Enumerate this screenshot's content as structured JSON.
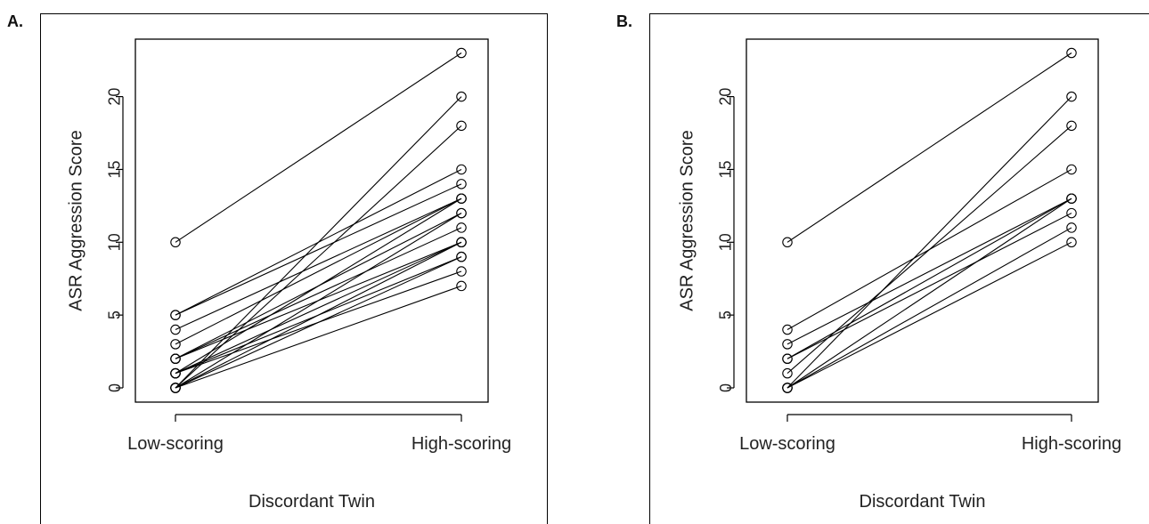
{
  "panels": [
    {
      "label": "A."
    },
    {
      "label": "B."
    }
  ],
  "chart_data": [
    {
      "type": "line",
      "panel": "A.",
      "title": "",
      "xlabel": "Discordant Twin",
      "ylabel": "ASR Aggression Score",
      "categories": [
        "Low-scoring",
        "High-scoring"
      ],
      "ylim": [
        0,
        23
      ],
      "yticks": [
        0,
        5,
        10,
        15,
        20
      ],
      "grid": false,
      "series": [
        {
          "values": [
            10,
            23
          ]
        },
        {
          "values": [
            0,
            20
          ]
        },
        {
          "values": [
            0,
            18
          ]
        },
        {
          "values": [
            5,
            15
          ]
        },
        {
          "values": [
            5,
            14
          ]
        },
        {
          "values": [
            4,
            13
          ]
        },
        {
          "values": [
            3,
            13
          ]
        },
        {
          "values": [
            2,
            12
          ]
        },
        {
          "values": [
            1,
            13
          ]
        },
        {
          "values": [
            2,
            11
          ]
        },
        {
          "values": [
            1,
            10
          ]
        },
        {
          "values": [
            0,
            12
          ]
        },
        {
          "values": [
            0,
            10
          ]
        },
        {
          "values": [
            1,
            9
          ]
        },
        {
          "values": [
            0,
            9
          ]
        },
        {
          "values": [
            2,
            10
          ]
        },
        {
          "values": [
            1,
            8
          ]
        },
        {
          "values": [
            0,
            7
          ]
        }
      ]
    },
    {
      "type": "line",
      "panel": "B.",
      "title": "",
      "xlabel": "Discordant Twin",
      "ylabel": "ASR Aggression Score",
      "categories": [
        "Low-scoring",
        "High-scoring"
      ],
      "ylim": [
        0,
        23
      ],
      "yticks": [
        0,
        5,
        10,
        15,
        20
      ],
      "grid": false,
      "series": [
        {
          "values": [
            10,
            23
          ]
        },
        {
          "values": [
            0,
            20
          ]
        },
        {
          "values": [
            1,
            18
          ]
        },
        {
          "values": [
            4,
            15
          ]
        },
        {
          "values": [
            3,
            13
          ]
        },
        {
          "values": [
            2,
            13
          ]
        },
        {
          "values": [
            2,
            12
          ]
        },
        {
          "values": [
            0,
            13
          ]
        },
        {
          "values": [
            0,
            11
          ]
        },
        {
          "values": [
            0,
            10
          ]
        }
      ]
    }
  ]
}
